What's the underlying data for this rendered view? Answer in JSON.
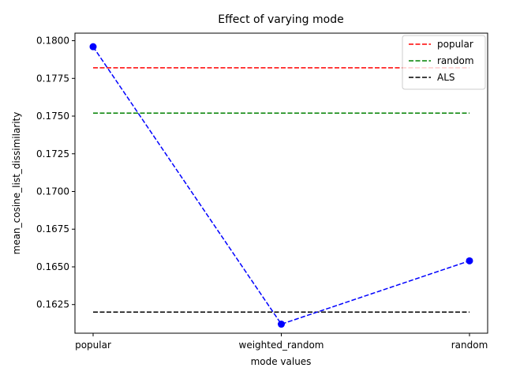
{
  "chart_data": {
    "type": "line",
    "title": "Effect of varying mode",
    "xlabel": "mode values",
    "ylabel": "mean_cosine_list_dissimilarity",
    "categories": [
      "popular",
      "weighted_random",
      "random"
    ],
    "ylim": [
      0.1606,
      0.1805
    ],
    "yticks": [
      0.1625,
      0.165,
      0.1675,
      0.17,
      0.1725,
      0.175,
      0.1775,
      0.18
    ],
    "ytick_labels": [
      "0.1625",
      "0.1650",
      "0.1675",
      "0.1700",
      "0.1725",
      "0.1750",
      "0.1775",
      "0.1800"
    ],
    "series": [
      {
        "values": [
          0.1796,
          0.1612,
          0.1654
        ],
        "color": "#0000ff",
        "style": "dashed",
        "marker": "circle"
      }
    ],
    "reference_lines": [
      {
        "name": "popular",
        "value": 0.1782,
        "color": "#ff0000",
        "style": "dashed"
      },
      {
        "name": "random",
        "value": 0.1752,
        "color": "#008000",
        "style": "dashed"
      },
      {
        "name": "ALS",
        "value": 0.162,
        "color": "#000000",
        "style": "dashed"
      }
    ],
    "legend_position": "top-right",
    "grid": false
  }
}
